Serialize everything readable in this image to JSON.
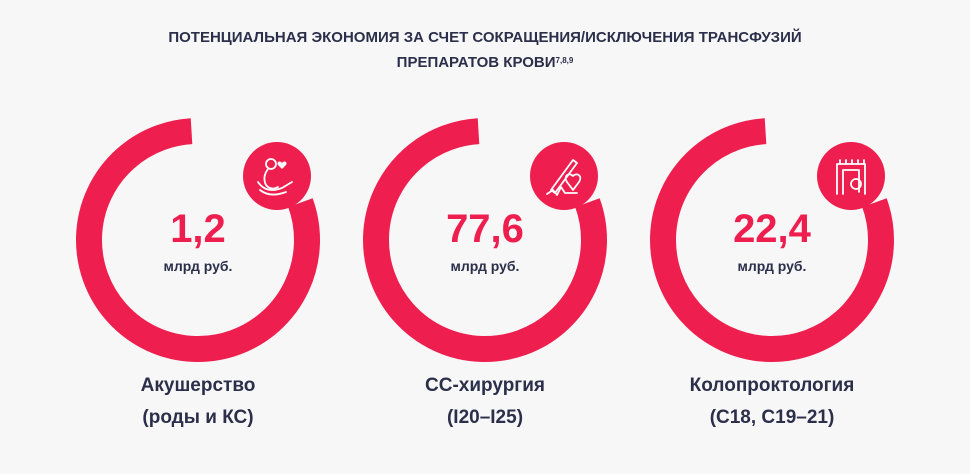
{
  "title": {
    "line1": "ПОТЕНЦИАЛЬНАЯ ЭКОНОМИЯ ЗА СЧЕТ СОКРАЩЕНИЯ/ИСКЛЮЧЕНИЯ ТРАНСФУЗИЙ",
    "line2": "ПРЕПАРАТОВ КРОВИ",
    "refs": "7,8,9"
  },
  "colors": {
    "accent": "#ee1f4f",
    "text": "#2b2f4a",
    "background": "#f7f7f8"
  },
  "cards": [
    {
      "value": "1,2",
      "unit": "млрд руб.",
      "label": "Акушерство",
      "sublabel": "(роды и КС)",
      "icon": "pregnancy-hands-icon"
    },
    {
      "value": "77,6",
      "unit": "млрд руб.",
      "label": "СС-хирургия",
      "sublabel": "(I20–I25)",
      "icon": "scalpel-heart-icon"
    },
    {
      "value": "22,4",
      "unit": "млрд руб.",
      "label": "Колопроктология",
      "sublabel": "(C18, C19–21)",
      "icon": "colon-icon"
    }
  ]
}
